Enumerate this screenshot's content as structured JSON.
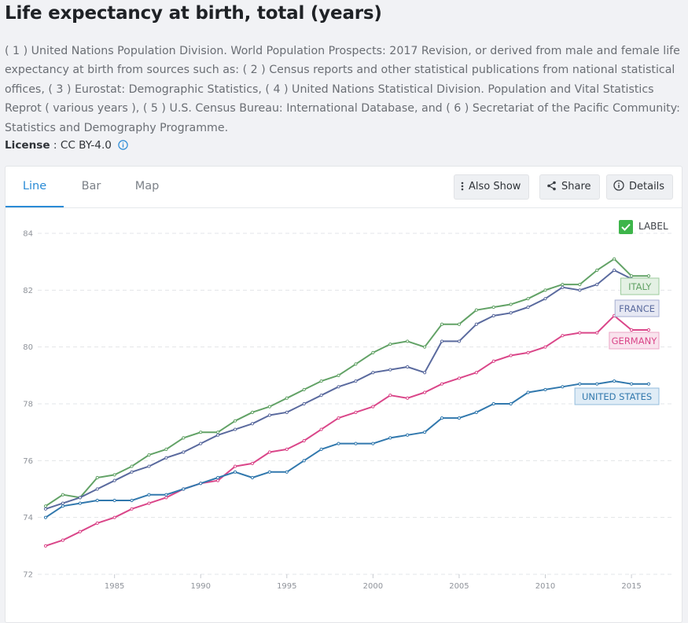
{
  "page": {
    "title": "Life expectancy at birth, total (years)",
    "source_text": "( 1 ) United Nations Population Division. World Population Prospects: 2017 Revision, or derived from male and female life expectancy at birth from sources such as: ( 2 ) Census reports and other statistical publications from national statistical offices, ( 3 ) Eurostat: Demographic Statistics, ( 4 ) United Nations Statistical Division. Population and Vital Statistics Reprot ( various years ), ( 5 ) U.S. Census Bureau: International Database, and ( 6 ) Secretariat of the Pacific Community: Statistics and Demography Programme.",
    "license_label": "License",
    "license_sep": " : ",
    "license_value": "CC BY-4.0"
  },
  "tabs": [
    {
      "label": "Line",
      "active": true
    },
    {
      "label": "Bar",
      "active": false
    },
    {
      "label": "Map",
      "active": false
    }
  ],
  "toolbar": {
    "also_show": "Also Show",
    "share": "Share",
    "details": "Details"
  },
  "label_toggle": {
    "label": "LABEL",
    "checked": true,
    "color": "#3db54a"
  },
  "chart_data": {
    "type": "line",
    "title": "Life expectancy at birth, total (years)",
    "xlabel": "",
    "ylabel": "",
    "xlim": [
      1981,
      2016
    ],
    "ylim": [
      72,
      84
    ],
    "yticks": [
      72,
      74,
      76,
      78,
      80,
      82,
      84
    ],
    "xticks": [
      1985,
      1990,
      1995,
      2000,
      2005,
      2010,
      2015
    ],
    "grid": true,
    "legend": "inline-end-labels",
    "x": [
      1981,
      1982,
      1983,
      1984,
      1985,
      1986,
      1987,
      1988,
      1989,
      1990,
      1991,
      1992,
      1993,
      1994,
      1995,
      1996,
      1997,
      1998,
      1999,
      2000,
      2001,
      2002,
      2003,
      2004,
      2005,
      2006,
      2007,
      2008,
      2009,
      2010,
      2011,
      2012,
      2013,
      2014,
      2015,
      2016
    ],
    "series": [
      {
        "name": "ITALY",
        "color": "#62a266",
        "label_bg": "#e4f1e4",
        "label_border": "#9dcb9d",
        "values": [
          74.4,
          74.8,
          74.7,
          75.4,
          75.5,
          75.8,
          76.2,
          76.4,
          76.8,
          77.0,
          77.0,
          77.4,
          77.7,
          77.9,
          78.2,
          78.5,
          78.8,
          79.0,
          79.4,
          79.8,
          80.1,
          80.2,
          80.0,
          80.8,
          80.8,
          81.3,
          81.4,
          81.5,
          81.7,
          82.0,
          82.2,
          82.2,
          82.7,
          83.1,
          82.5,
          82.5
        ]
      },
      {
        "name": "FRANCE",
        "color": "#5a6a9e",
        "label_bg": "#e6e8f3",
        "label_border": "#a4aed0",
        "values": [
          74.3,
          74.5,
          74.7,
          75.0,
          75.3,
          75.6,
          75.8,
          76.1,
          76.3,
          76.6,
          76.9,
          77.1,
          77.3,
          77.6,
          77.7,
          78.0,
          78.3,
          78.6,
          78.8,
          79.1,
          79.2,
          79.3,
          79.1,
          80.2,
          80.2,
          80.8,
          81.1,
          81.2,
          81.4,
          81.7,
          82.1,
          82.0,
          82.2,
          82.7,
          82.4,
          82.3
        ]
      },
      {
        "name": "GERMANY",
        "color": "#da4689",
        "label_bg": "#f9e3ed",
        "label_border": "#eba6c6",
        "values": [
          73.0,
          73.2,
          73.5,
          73.8,
          74.0,
          74.3,
          74.5,
          74.7,
          75.0,
          75.2,
          75.3,
          75.8,
          75.9,
          76.3,
          76.4,
          76.7,
          77.1,
          77.5,
          77.7,
          77.9,
          78.3,
          78.2,
          78.4,
          78.7,
          78.9,
          79.1,
          79.5,
          79.7,
          79.8,
          80.0,
          80.4,
          80.5,
          80.5,
          81.1,
          80.6,
          80.6
        ]
      },
      {
        "name": "UNITED STATES",
        "color": "#3178ad",
        "label_bg": "#dfecf6",
        "label_border": "#93bcdc",
        "values": [
          74.0,
          74.4,
          74.5,
          74.6,
          74.6,
          74.6,
          74.8,
          74.8,
          75.0,
          75.2,
          75.4,
          75.6,
          75.4,
          75.6,
          75.6,
          76.0,
          76.4,
          76.6,
          76.6,
          76.6,
          76.8,
          76.9,
          77.0,
          77.5,
          77.5,
          77.7,
          78.0,
          78.0,
          78.4,
          78.5,
          78.6,
          78.7,
          78.7,
          78.8,
          78.7,
          78.7
        ]
      }
    ]
  }
}
